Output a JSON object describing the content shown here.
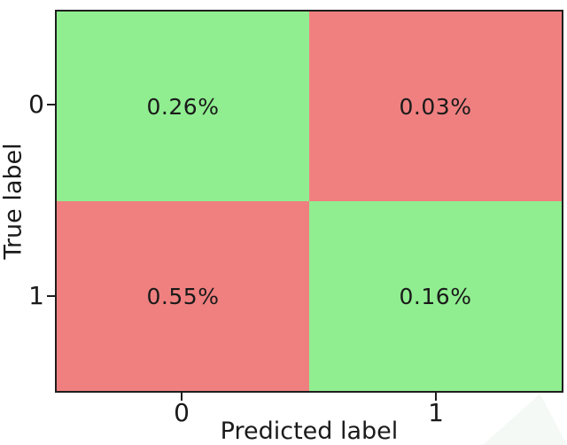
{
  "chart_data": {
    "type": "heatmap",
    "title": "",
    "xlabel": "Predicted label",
    "ylabel": "True label",
    "x_tick_labels": [
      "0",
      "1"
    ],
    "y_tick_labels": [
      "0",
      "1"
    ],
    "rows": [
      "0",
      "1"
    ],
    "columns": [
      "0",
      "1"
    ],
    "cells": [
      {
        "true_label": "0",
        "predicted_label": "0",
        "value": "0.26%",
        "color": "#90EE90"
      },
      {
        "true_label": "0",
        "predicted_label": "1",
        "value": "0.03%",
        "color": "#F08080"
      },
      {
        "true_label": "1",
        "predicted_label": "0",
        "value": "0.55%",
        "color": "#F08080"
      },
      {
        "true_label": "1",
        "predicted_label": "1",
        "value": "0.16%",
        "color": "#90EE90"
      }
    ],
    "colors": {
      "correct_cell": "#90EE90",
      "incorrect_cell": "#F08080",
      "spine": "#1e1e1e",
      "text": "#1a1a1a"
    },
    "legend": "none",
    "grid": false
  }
}
